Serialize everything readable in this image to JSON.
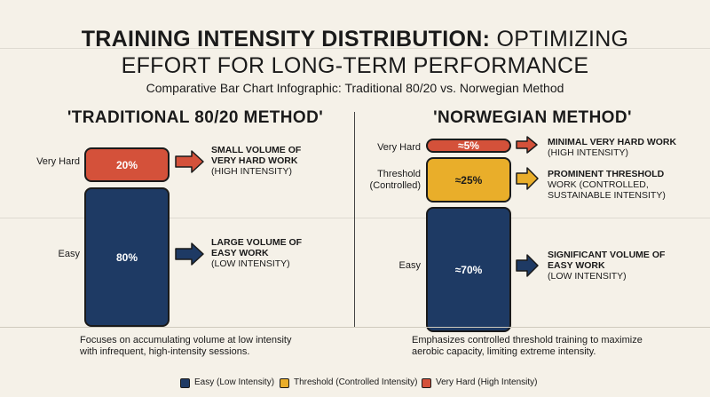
{
  "title": {
    "bold": "TRAINING INTENSITY DISTRIBUTION:",
    "light": " OPTIMIZING",
    "line2": "EFFORT FOR LONG-TERM PERFORMANCE"
  },
  "subtitle": "Comparative Bar Chart Infographic: Traditional 80/20 vs. Norwegian Method",
  "colors": {
    "easy": "#1e3a64",
    "threshold": "#e9ae2a",
    "very_hard": "#d4513a"
  },
  "chart_data": [
    {
      "type": "bar",
      "title": "'TRADITIONAL 80/20 METHOD'",
      "categories": [
        "Very Hard",
        "Easy"
      ],
      "values": [
        20,
        80
      ],
      "value_labels": [
        "20%",
        "80%"
      ],
      "annotations": [
        {
          "bold": "SMALL VOLUME OF VERY HARD WORK",
          "detail": "(HIGH INTENSITY)"
        },
        {
          "bold": "LARGE VOLUME OF EASY WORK",
          "detail": "(LOW INTENSITY)"
        }
      ],
      "description": "Focuses on accumulating volume at low intensity with infrequent, high-intensity sessions."
    },
    {
      "type": "bar",
      "title": "'NORWEGIAN METHOD'",
      "categories": [
        "Very Hard",
        "Threshold (Controlled)",
        "Easy"
      ],
      "values": [
        5,
        25,
        70
      ],
      "value_labels": [
        "≈5%",
        "≈25%",
        "≈70%"
      ],
      "annotations": [
        {
          "bold": "MINIMAL VERY HARD WORK",
          "detail": "(HIGH INTENSITY)"
        },
        {
          "bold": "PROMINENT THRESHOLD WORK",
          "detail": "(CONTROLLED, SUSTAINABLE INTENSITY)"
        },
        {
          "bold": "SIGNIFICANT VOLUME OF EASY WORK",
          "detail": "(LOW INTENSITY)"
        }
      ],
      "description": "Emphasizes controlled threshold training to maximize aerobic capacity, limiting extreme intensity."
    }
  ],
  "labels": {
    "very_hard": "Very Hard",
    "threshold_l1": "Threshold",
    "threshold_l2": "(Controlled)",
    "easy": "Easy"
  },
  "notes": {
    "l_vh_1": "SMALL VOLUME OF",
    "l_vh_2": "VERY HARD WORK",
    "l_vh_3": "(HIGH INTENSITY)",
    "l_e_1": "LARGE VOLUME OF",
    "l_e_2": "EASY WORK",
    "l_e_3": "(LOW INTENSITY)",
    "r_vh_1": "MINIMAL VERY HARD WORK",
    "r_vh_2": "(HIGH INTENSITY)",
    "r_t_1": "PROMINENT THRESHOLD",
    "r_t_2": "WORK (CONTROLLED,",
    "r_t_3": "SUSTAINABLE INTENSITY)",
    "r_e_1": "SIGNIFICANT VOLUME OF",
    "r_e_2": "EASY WORK",
    "r_e_3": "(LOW INTENSITY)"
  },
  "desc": {
    "left_1": "Focuses on accumulating volume at low intensity",
    "left_2": "with infrequent, high-intensity sessions.",
    "right_1": "Emphasizes controlled threshold training to maximize",
    "right_2": "aerobic capacity, limiting extreme intensity."
  },
  "legend": [
    {
      "label": "Easy (Low Intensity)",
      "color": "#1e3a64"
    },
    {
      "label": "Threshold (Controlled Intensity)",
      "color": "#e9ae2a"
    },
    {
      "label": "Very Hard (High Intensity)",
      "color": "#d4513a"
    }
  ]
}
